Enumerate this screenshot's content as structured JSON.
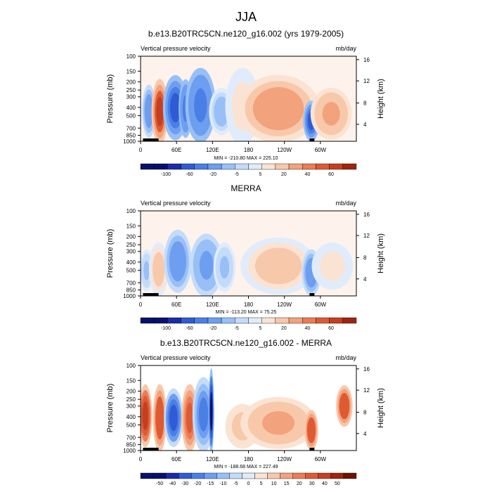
{
  "figure": {
    "title": "JJA"
  },
  "chart_data": [
    {
      "type": "heatmap",
      "title": "b.e13.B20TRC5CN.ne120_g16.002 (yrs 1979-2005)",
      "left_label": "Vertical pressure velocity",
      "right_label": "mb/day",
      "ylabel": "Pressure (mb)",
      "ylabel_right": "Height (km)",
      "x_ticks": [
        "0",
        "60E",
        "120E",
        "180",
        "120W",
        "60W"
      ],
      "y_ticks": [
        "100",
        "150",
        "200",
        "250",
        "300",
        "400",
        "500",
        "700",
        "850",
        "1000"
      ],
      "y_ticks_right": [
        "16",
        "12",
        "8",
        "4"
      ],
      "stats": "MIN = -210.80  MAX = 225.10",
      "colorbar_labels": [
        "-100",
        "-60",
        "-20",
        "-5",
        "5",
        "20",
        "40",
        "60"
      ],
      "colorbar_levels": [
        -120,
        -100,
        -80,
        -60,
        -40,
        -20,
        -10,
        -5,
        5,
        10,
        20,
        30,
        40,
        50,
        60
      ],
      "regions": [
        {
          "lon": 14,
          "p_top": 230,
          "p_bot": 850,
          "width": 10,
          "value": -30
        },
        {
          "lon": 32,
          "p_top": 200,
          "p_bot": 1000,
          "width": 12,
          "value": 60
        },
        {
          "lon": 58,
          "p_top": 180,
          "p_bot": 900,
          "width": 18,
          "value": -70
        },
        {
          "lon": 75,
          "p_top": 200,
          "p_bot": 850,
          "width": 10,
          "value": -45
        },
        {
          "lon": 100,
          "p_top": 150,
          "p_bot": 950,
          "width": 22,
          "value": -40
        },
        {
          "lon": 135,
          "p_top": 250,
          "p_bot": 800,
          "width": 18,
          "value": -15
        },
        {
          "lon": 170,
          "p_top": 150,
          "p_bot": 1000,
          "width": 25,
          "value": 10
        },
        {
          "lon": 230,
          "p_top": 180,
          "p_bot": 950,
          "width": 60,
          "value": 30
        },
        {
          "lon": 285,
          "p_top": 350,
          "p_bot": 950,
          "width": 12,
          "value": -60
        },
        {
          "lon": 318,
          "p_top": 250,
          "p_bot": 900,
          "width": 30,
          "value": 25
        }
      ]
    },
    {
      "type": "heatmap",
      "title": "MERRA",
      "left_label": "Vertical pressure velocity",
      "right_label": "mb/day",
      "ylabel": "Pressure (mb)",
      "ylabel_right": "Height (km)",
      "x_ticks": [
        "0",
        "60E",
        "120E",
        "180",
        "120W",
        "60W"
      ],
      "y_ticks": [
        "100",
        "150",
        "200",
        "250",
        "300",
        "400",
        "500",
        "700",
        "850",
        "1000"
      ],
      "y_ticks_right": [
        "16",
        "12",
        "8",
        "4"
      ],
      "stats": "MIN = -113.20  MAX =  75.25",
      "colorbar_labels": [
        "-100",
        "-60",
        "-20",
        "-5",
        "5",
        "20",
        "40",
        "60"
      ],
      "colorbar_levels": [
        -120,
        -100,
        -80,
        -60,
        -40,
        -20,
        -10,
        -5,
        5,
        10,
        20,
        30,
        40,
        50,
        60
      ],
      "regions": [
        {
          "lon": 10,
          "p_top": 300,
          "p_bot": 850,
          "width": 10,
          "value": -10
        },
        {
          "lon": 30,
          "p_top": 250,
          "p_bot": 950,
          "width": 14,
          "value": 20
        },
        {
          "lon": 62,
          "p_top": 180,
          "p_bot": 850,
          "width": 20,
          "value": -30
        },
        {
          "lon": 110,
          "p_top": 200,
          "p_bot": 950,
          "width": 24,
          "value": -25
        },
        {
          "lon": 140,
          "p_top": 250,
          "p_bot": 850,
          "width": 16,
          "value": -12
        },
        {
          "lon": 230,
          "p_top": 220,
          "p_bot": 900,
          "width": 55,
          "value": 15
        },
        {
          "lon": 285,
          "p_top": 300,
          "p_bot": 950,
          "width": 14,
          "value": -30
        },
        {
          "lon": 320,
          "p_top": 250,
          "p_bot": 800,
          "width": 30,
          "value": 10
        }
      ]
    },
    {
      "type": "heatmap",
      "title": "b.e13.B20TRC5CN.ne120_g16.002 - MERRA",
      "left_label": "Vertical pressure velocity",
      "right_label": "mb/day",
      "ylabel": "Pressure (mb)",
      "ylabel_right": "Height (km)",
      "x_ticks": [
        "0",
        "60E",
        "120E",
        "180",
        "120W",
        "60W"
      ],
      "y_ticks": [
        "100",
        "150",
        "200",
        "250",
        "300",
        "400",
        "500",
        "700",
        "850",
        "1000"
      ],
      "y_ticks_right": [
        "16",
        "12",
        "8",
        "4"
      ],
      "stats": "MIN = -188.68  MAX = 227.49",
      "colorbar_labels": [
        "-50",
        "-40",
        "-30",
        "-20",
        "-15",
        "-10",
        "-5",
        "0",
        "5",
        "10",
        "15",
        "20",
        "30",
        "40",
        "50"
      ],
      "colorbar_levels": [
        -60,
        -50,
        -40,
        -30,
        -20,
        -15,
        -10,
        -5,
        0,
        5,
        10,
        15,
        20,
        30,
        40,
        50
      ],
      "regions": [
        {
          "lon": 8,
          "p_top": 180,
          "p_bot": 850,
          "width": 10,
          "value": 35
        },
        {
          "lon": 32,
          "p_top": 180,
          "p_bot": 950,
          "width": 10,
          "value": 30
        },
        {
          "lon": 55,
          "p_top": 200,
          "p_bot": 850,
          "width": 14,
          "value": -35
        },
        {
          "lon": 82,
          "p_top": 180,
          "p_bot": 950,
          "width": 12,
          "value": 25
        },
        {
          "lon": 105,
          "p_top": 150,
          "p_bot": 950,
          "width": 16,
          "value": -20
        },
        {
          "lon": 118,
          "p_top": 120,
          "p_bot": 1000,
          "width": 4,
          "value": -50
        },
        {
          "lon": 170,
          "p_top": 300,
          "p_bot": 900,
          "width": 25,
          "value": 8
        },
        {
          "lon": 230,
          "p_top": 250,
          "p_bot": 900,
          "width": 55,
          "value": 12
        },
        {
          "lon": 285,
          "p_top": 350,
          "p_bot": 950,
          "width": 10,
          "value": 30
        },
        {
          "lon": 340,
          "p_top": 180,
          "p_bot": 500,
          "width": 12,
          "value": 30
        }
      ]
    }
  ]
}
